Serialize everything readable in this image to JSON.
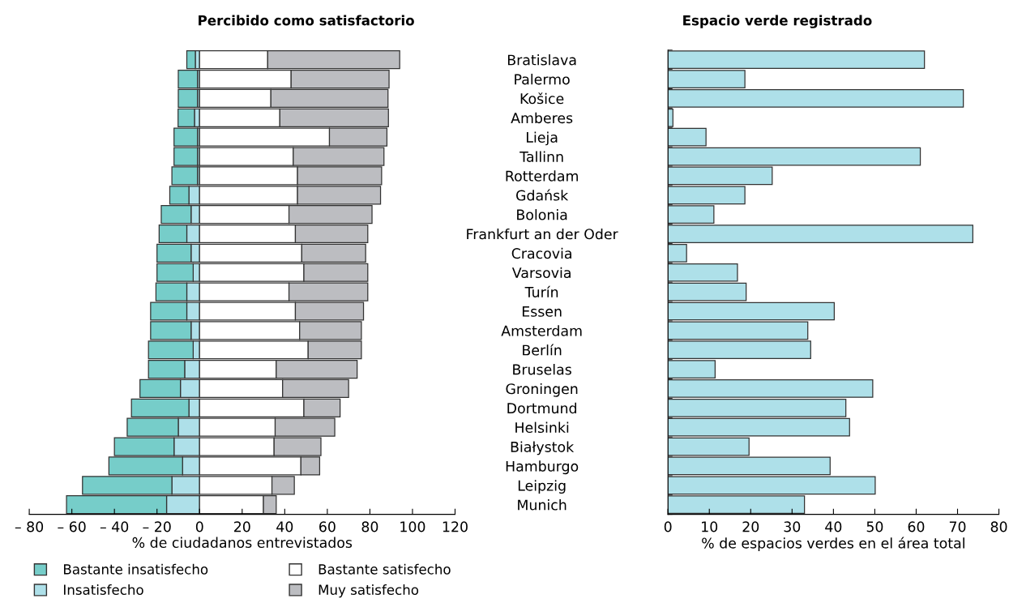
{
  "chart_data": [
    {
      "type": "bar",
      "orientation": "horizontal",
      "stacked": true,
      "title": "Percibido como satisfactorio",
      "xlabel": "% de ciudadanos entrevistados",
      "categories": [
        null,
        null,
        null,
        null,
        null,
        null,
        null,
        null,
        null,
        null,
        null,
        null,
        null,
        null,
        null,
        null,
        null,
        null,
        null,
        null,
        null,
        null,
        null,
        null
      ],
      "series": [
        {
          "name": "Insatisfecho",
          "color": "#aee0e9",
          "values": [
            -2,
            -1,
            -1,
            -2.4,
            -1,
            -1,
            -1,
            -5,
            -4,
            -6,
            -4,
            -3,
            -6,
            -6,
            -4,
            -3,
            -7,
            -9,
            -5,
            -10,
            -12,
            -8,
            -13,
            -15.5
          ]
        },
        {
          "name": "Bastante insatisfecho",
          "color": "#76cdc9",
          "values": [
            -4,
            -9,
            -9,
            -7.7,
            -11,
            -11,
            -12,
            -9,
            -14,
            -13,
            -16,
            -17,
            -14.5,
            -17,
            -19,
            -21,
            -17,
            -19,
            -27,
            -24,
            -28,
            -34.6,
            -42,
            -47
          ]
        },
        {
          "name": "Bastante satisfecho",
          "color": "#ffffff",
          "values": [
            32,
            43,
            33.5,
            37.7,
            61,
            44,
            46,
            46,
            42,
            45,
            48,
            49,
            42,
            45,
            47,
            51,
            36,
            39,
            49,
            35.5,
            35,
            47.6,
            34,
            30
          ]
        },
        {
          "name": "Muy satisfecho",
          "color": "#bcbdc1",
          "values": [
            62,
            46,
            55,
            51,
            27,
            42.6,
            39.5,
            39,
            39,
            34,
            30,
            30,
            37,
            32,
            29,
            25,
            38,
            31,
            17,
            28,
            22,
            8.8,
            10.5,
            6
          ]
        }
      ],
      "xlim": [
        -80,
        120
      ],
      "xticks": [
        {
          "value": -80,
          "label": "– 80"
        },
        {
          "value": -60,
          "label": "– 60"
        },
        {
          "value": -40,
          "label": "– 40"
        },
        {
          "value": -20,
          "label": "– 20"
        },
        0,
        20,
        40,
        60,
        80,
        100,
        120
      ],
      "legend": "bottom",
      "grid": false
    },
    {
      "type": "bar",
      "orientation": "horizontal",
      "title": "Espacio verde registrado",
      "xlabel": "% de espacios verdes en el área total",
      "categories": [
        "Bratislava",
        "Palermo",
        "Košice",
        "Amberes",
        "Lieja",
        "Tallinn",
        "Rotterdam",
        "Gdańsk",
        "Bolonia",
        "Frankfurt an der Oder",
        "Cracovia",
        "Varsovia",
        "Turín",
        "Essen",
        "Amsterdam",
        "Berlín",
        "Bruselas",
        "Groningen",
        "Dortmund",
        "Helsinki",
        "Białystok",
        "Hamburgo",
        "Leipzig",
        "Munich"
      ],
      "values": [
        62,
        18.6,
        71.4,
        1.2,
        9.2,
        61,
        25.2,
        18.6,
        11.1,
        73.7,
        4.5,
        16.8,
        18.9,
        40.2,
        33.8,
        34.5,
        11.4,
        49.5,
        43,
        43.9,
        19.6,
        39.2,
        50.1,
        33
      ],
      "color": "#aee0e9",
      "xlim": [
        0,
        80
      ],
      "xticks": [
        0,
        10,
        20,
        30,
        40,
        50,
        60,
        70,
        80
      ],
      "grid": false
    }
  ]
}
